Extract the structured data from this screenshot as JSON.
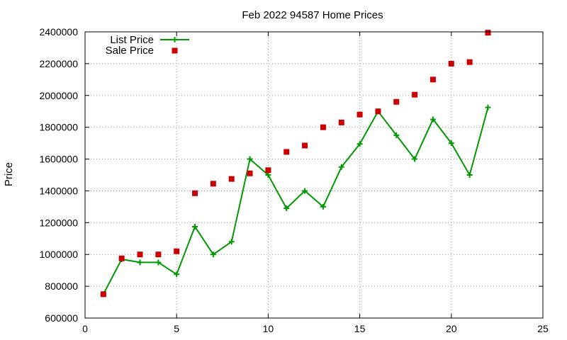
{
  "chart_data": {
    "type": "scatter",
    "title": "Feb 2022 94587 Home Prices",
    "xlabel": "",
    "ylabel": "Price",
    "xlim": [
      0,
      25
    ],
    "ylim": [
      600000,
      2400000
    ],
    "xticks": [
      0,
      5,
      10,
      15,
      20,
      25
    ],
    "yticks": [
      600000,
      800000,
      1000000,
      1200000,
      1400000,
      1600000,
      1800000,
      2000000,
      2200000,
      2400000
    ],
    "grid": true,
    "legend_position": "top-left",
    "series": [
      {
        "name": "List Price",
        "style": "line-with-plus-markers",
        "color": "#009900",
        "x": [
          1,
          2,
          3,
          4,
          5,
          6,
          7,
          8,
          9,
          10,
          11,
          12,
          13,
          14,
          15,
          16,
          17,
          18,
          19,
          20,
          21,
          22
        ],
        "y": [
          750000,
          970000,
          950000,
          950000,
          875000,
          1175000,
          1000000,
          1080000,
          1600000,
          1500000,
          1290000,
          1400000,
          1300000,
          1550000,
          1695000,
          1900000,
          1750000,
          1600000,
          1850000,
          1700000,
          1500000,
          1925000
        ]
      },
      {
        "name": "Sale Price",
        "style": "square-markers",
        "color": "#cc0000",
        "x": [
          1,
          2,
          3,
          4,
          5,
          6,
          7,
          8,
          9,
          10,
          11,
          12,
          13,
          14,
          15,
          16,
          17,
          18,
          19,
          20,
          21,
          22
        ],
        "y": [
          750000,
          975000,
          1000000,
          1000000,
          1020000,
          1385000,
          1445000,
          1475000,
          1510000,
          1530000,
          1645000,
          1685000,
          1800000,
          1830000,
          1880000,
          1900000,
          1960000,
          2005000,
          2100000,
          2200000,
          2210000,
          2395000
        ]
      }
    ]
  }
}
